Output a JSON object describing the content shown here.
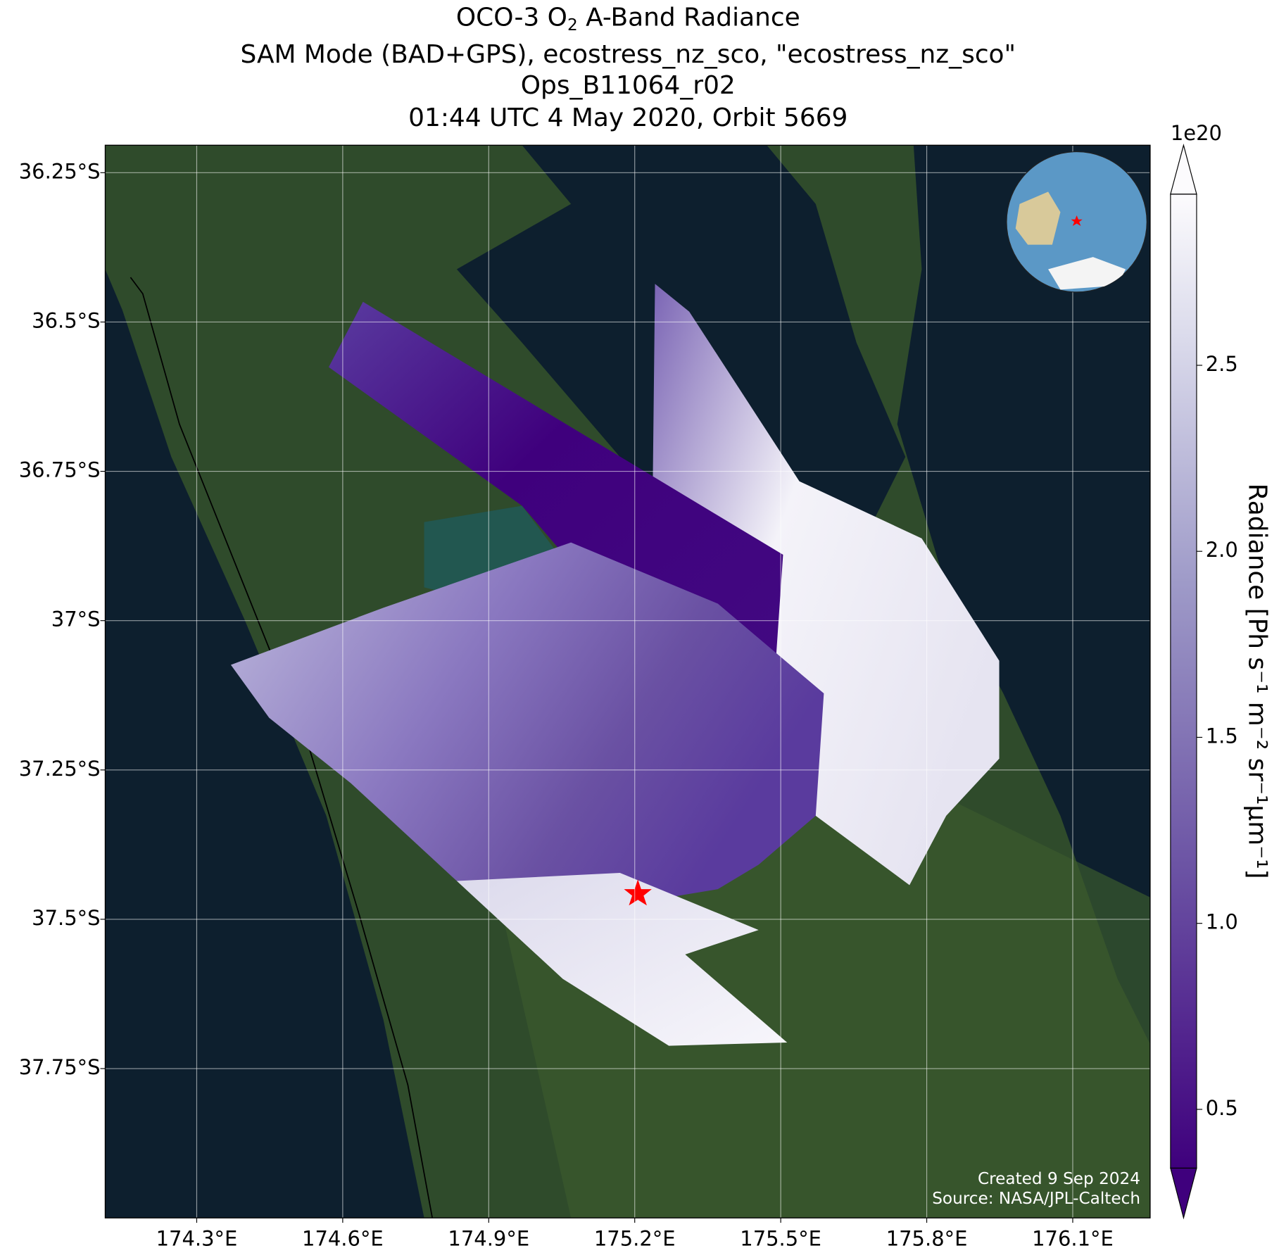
{
  "title": {
    "line1": {
      "before": "OCO-3 O",
      "subscript": "2",
      "after": " A-Band Radiance"
    },
    "line2": "SAM Mode (BAD+GPS), ecostress_nz_sco, \"ecostress_nz_sco\"",
    "line3": "Ops_B11064_r02",
    "line4": "01:44 UTC 4 May 2020, Orbit 5669"
  },
  "map": {
    "xlim": [
      174.112,
      176.259
    ],
    "ylim": [
      -38.0,
      -36.204
    ],
    "grid": true,
    "xticks": [
      {
        "value": 174.3,
        "label": "174.3°E"
      },
      {
        "value": 174.6,
        "label": "174.6°E"
      },
      {
        "value": 174.9,
        "label": "174.9°E"
      },
      {
        "value": 175.2,
        "label": "175.2°E"
      },
      {
        "value": 175.5,
        "label": "175.5°E"
      },
      {
        "value": 175.8,
        "label": "175.8°E"
      },
      {
        "value": 176.1,
        "label": "176.1°E"
      }
    ],
    "yticks": [
      {
        "value": -36.25,
        "label": "36.25°S"
      },
      {
        "value": -36.5,
        "label": "36.5°S"
      },
      {
        "value": -36.75,
        "label": "36.75°S"
      },
      {
        "value": -37,
        "label": "37°S"
      },
      {
        "value": -37.25,
        "label": "37.25°S"
      },
      {
        "value": -37.5,
        "label": "37.5°S"
      },
      {
        "value": -37.75,
        "label": "37.75°S"
      }
    ]
  },
  "colorbar": {
    "label": "Radiance [Ph s⁻¹ m⁻² sr⁻¹μm⁻¹]",
    "offset_label": "1e20",
    "lim": [
      0.342,
      2.96
    ],
    "ticks": [
      0.5,
      {
        "value": 1,
        "label": "1.0"
      },
      1.5,
      {
        "value": 2,
        "label": "2.0"
      },
      2.5
    ]
  },
  "credits": {
    "created": "Created 9 Sep 2024",
    "source": "Source: NASA/JPL-Caltech"
  }
}
